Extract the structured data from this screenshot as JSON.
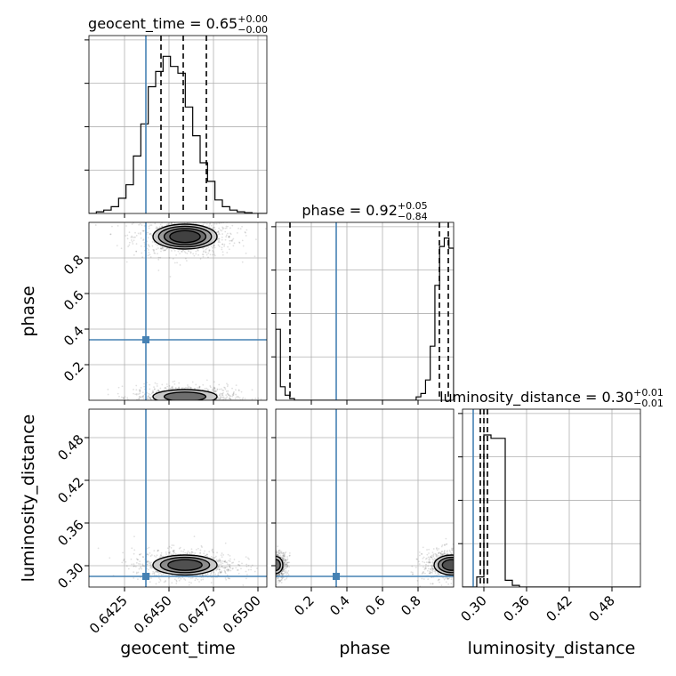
{
  "chart_data": {
    "type": "corner",
    "truth_color": "#4682b4",
    "parameters": [
      {
        "name": "geocent_time",
        "xlabel": "geocent_time",
        "ylabel": "",
        "title_main": "geocent_time = 0.65",
        "title_plus": "+0.00",
        "title_minus": "−0.00",
        "range": [
          0.6405,
          0.6505
        ],
        "ticks": [
          "0.6425",
          "0.6450",
          "0.6475",
          "0.6500"
        ],
        "tick_values": [
          0.6425,
          0.645,
          0.6475,
          0.65
        ],
        "truth": 0.6437,
        "quantiles": [
          0.64455,
          0.6458,
          0.6471
        ],
        "hist": [
          0,
          0.01,
          0.02,
          0.04,
          0.09,
          0.17,
          0.34,
          0.53,
          0.75,
          0.84,
          0.93,
          0.87,
          0.83,
          0.63,
          0.46,
          0.3,
          0.19,
          0.08,
          0.04,
          0.02,
          0.01,
          0.005,
          0,
          0
        ],
        "hist_ylim": [
          0,
          1.0
        ]
      },
      {
        "name": "phase",
        "xlabel": "phase",
        "ylabel": "phase",
        "title_main": "phase = 0.92",
        "title_plus": "+0.05",
        "title_minus": "−0.84",
        "range": [
          0.0,
          1.0
        ],
        "ticks": [
          "0.2",
          "0.4",
          "0.6",
          "0.8"
        ],
        "tick_values": [
          0.2,
          0.4,
          0.6,
          0.8
        ],
        "truth": 0.34,
        "quantiles": [
          0.08,
          0.92,
          0.97
        ],
        "hist": [
          0.42,
          0.08,
          0.03,
          0.01,
          0,
          0,
          0,
          0,
          0,
          0,
          0,
          0,
          0,
          0,
          0,
          0,
          0,
          0,
          0,
          0,
          0,
          0,
          0,
          0,
          0,
          0,
          0,
          0,
          0,
          0,
          0.02,
          0.04,
          0.12,
          0.32,
          0.68,
          0.91,
          0.96,
          0.9
        ],
        "hist_ylim": [
          0,
          1.0
        ]
      },
      {
        "name": "luminosity_distance",
        "xlabel": "luminosity_distance",
        "ylabel": "luminosity_distance",
        "title_main": "luminosity_distance = 0.30",
        "title_plus": "+0.01",
        "title_minus": "−0.01",
        "range": [
          0.27,
          0.52
        ],
        "ticks": [
          "0.30",
          "0.36",
          "0.42",
          "0.48"
        ],
        "tick_values": [
          0.3,
          0.36,
          0.42,
          0.48
        ],
        "truth": 0.285,
        "quantiles": [
          0.295,
          0.3,
          0.305
        ],
        "hist": [
          0,
          0,
          0.06,
          0.9,
          0.88,
          0.88,
          0.04,
          0.01,
          0,
          0,
          0,
          0,
          0,
          0,
          0,
          0,
          0,
          0,
          0,
          0,
          0,
          0,
          0,
          0,
          0
        ],
        "hist_ylim": [
          0,
          1.0
        ]
      }
    ],
    "blobs": {
      "1_0": [
        {
          "x": 0.6459,
          "y": 0.92,
          "sx": 0.0009,
          "sy": 0.035,
          "ring": 4
        },
        {
          "x": 0.6459,
          "y": 0.02,
          "sx": 0.0009,
          "sy": 0.02,
          "ring": 2
        }
      ],
      "2_0": [
        {
          "x": 0.6459,
          "y": 0.301,
          "sx": 0.0009,
          "sy": 0.007,
          "ring": 3
        }
      ],
      "2_1": [
        {
          "x": 0.99,
          "y": 0.301,
          "sx": 0.05,
          "sy": 0.007,
          "ring": 3
        },
        {
          "x": 0.0,
          "y": 0.301,
          "sx": 0.02,
          "sy": 0.006,
          "ring": 2
        }
      ]
    }
  }
}
